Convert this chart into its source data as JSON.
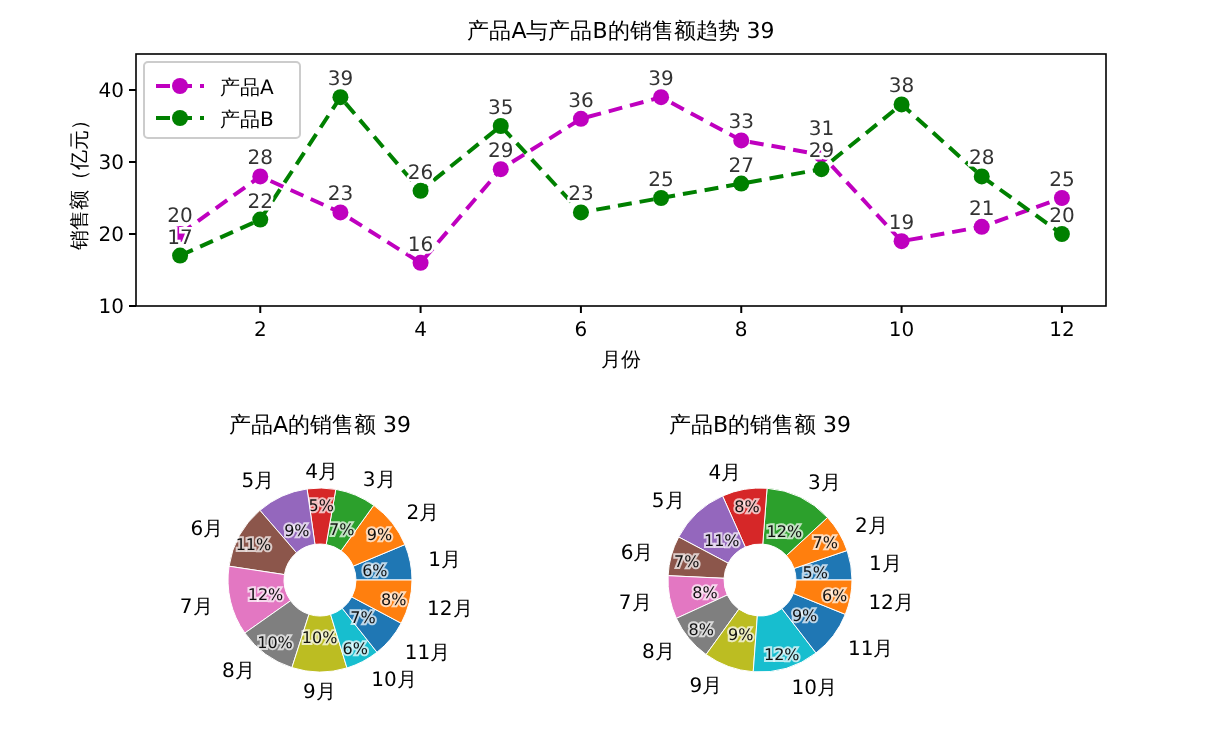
{
  "chart_data": [
    {
      "type": "line",
      "title": "产品A与产品B的销售额趋势 39",
      "xlabel": "月份",
      "ylabel": "销售额（亿元）",
      "x": [
        1,
        2,
        3,
        4,
        5,
        6,
        7,
        8,
        9,
        10,
        11,
        12
      ],
      "xlim": [
        0.45,
        12.55
      ],
      "xticks": [
        2,
        4,
        6,
        8,
        10,
        12
      ],
      "ylim": [
        10,
        45
      ],
      "yticks": [
        10,
        20,
        30,
        40
      ],
      "marker": "circle",
      "line_style": "dashed",
      "legend": "top left",
      "data_labels": true,
      "grid": false,
      "series": [
        {
          "name": "产品A",
          "color": "#bf00bf",
          "values": [
            20,
            28,
            23,
            16,
            29,
            36,
            39,
            33,
            31,
            19,
            21,
            25
          ]
        },
        {
          "name": "产品B",
          "color": "#008000",
          "values": [
            17,
            22,
            39,
            26,
            35,
            23,
            25,
            27,
            29,
            38,
            28,
            20
          ]
        }
      ]
    },
    {
      "type": "donut",
      "title": "产品A的销售额 39",
      "categories": [
        "1月",
        "2月",
        "3月",
        "4月",
        "5月",
        "6月",
        "7月",
        "8月",
        "9月",
        "10月",
        "11月",
        "12月"
      ],
      "values": [
        6.3,
        8.8,
        7.2,
        5.0,
        9.1,
        11.3,
        12.2,
        10.3,
        9.7,
        5.9,
        6.6,
        7.8
      ],
      "value_labels": [
        "6%",
        "9%",
        "7%",
        "5%",
        "9%",
        "11%",
        "12%",
        "10%",
        "10%",
        "6%",
        "7%",
        "8%"
      ],
      "colors": [
        "#1f77b4",
        "#ff7f0e",
        "#2ca02c",
        "#d62728",
        "#9467bd",
        "#8c564b",
        "#e377c2",
        "#7f7f7f",
        "#bcbd22",
        "#17becf",
        "#1f77b4",
        "#ff7f0e"
      ]
    },
    {
      "type": "donut",
      "title": "产品B的销售额 39",
      "categories": [
        "1月",
        "2月",
        "3月",
        "4月",
        "5月",
        "6月",
        "7月",
        "8月",
        "9月",
        "10月",
        "11月",
        "12月"
      ],
      "values": [
        5.2,
        6.7,
        11.9,
        7.9,
        10.6,
        7.0,
        7.6,
        8.2,
        8.8,
        11.6,
        8.5,
        6.1
      ],
      "value_labels": [
        "5%",
        "7%",
        "12%",
        "8%",
        "11%",
        "7%",
        "8%",
        "8%",
        "9%",
        "12%",
        "9%",
        "6%"
      ],
      "colors": [
        "#1f77b4",
        "#ff7f0e",
        "#2ca02c",
        "#d62728",
        "#9467bd",
        "#8c564b",
        "#e377c2",
        "#7f7f7f",
        "#bcbd22",
        "#17becf",
        "#1f77b4",
        "#ff7f0e"
      ]
    }
  ]
}
